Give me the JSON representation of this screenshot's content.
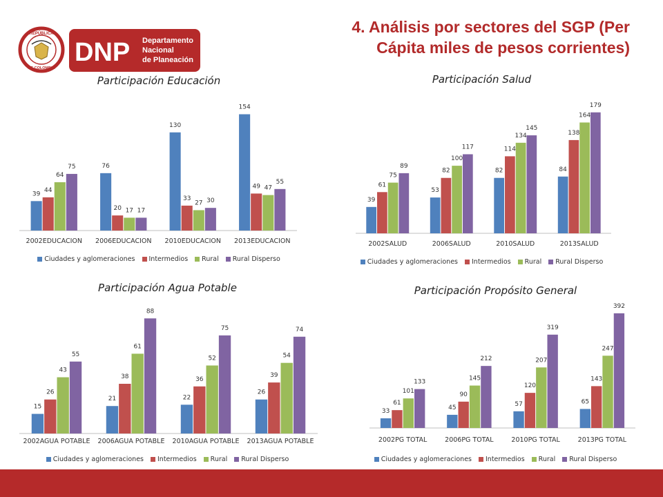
{
  "header": {
    "title_line1": "4. Análisis por sectores del SGP (Per",
    "title_line2": "Cápita miles de pesos corrientes)",
    "logo_text": "DNP",
    "logo_sub1": "Departamento",
    "logo_sub2": "Nacional",
    "logo_sub3": "de Planeación",
    "seal_top": "REPÚBLICA",
    "seal_bottom": "DE COLOMBIA"
  },
  "legend_labels": [
    "Ciudades y aglomeraciones",
    "Intermedios",
    "Rural",
    "Rural Disperso"
  ],
  "colors": [
    "#4f81bd",
    "#c0504d",
    "#9bbb59",
    "#8064a2"
  ],
  "brand_color": "#b52a2a",
  "chart_data": [
    {
      "type": "bar",
      "title": "Participación Educación",
      "categories": [
        "2002EDUCACION",
        "2006EDUCACION",
        "2010EDUCACION",
        "2013EDUCACION"
      ],
      "series": [
        {
          "name": "Ciudades y aglomeraciones",
          "values": [
            39,
            76,
            130,
            154
          ]
        },
        {
          "name": "Intermedios",
          "values": [
            44,
            20,
            33,
            49
          ]
        },
        {
          "name": "Rural",
          "values": [
            64,
            17,
            27,
            47
          ]
        },
        {
          "name": "Rural Disperso",
          "values": [
            75,
            17,
            30,
            55
          ]
        }
      ],
      "ylim": [
        0,
        170
      ]
    },
    {
      "type": "bar",
      "title": "Participación Salud",
      "categories": [
        "2002SALUD",
        "2006SALUD",
        "2010SALUD",
        "2013SALUD"
      ],
      "series": [
        {
          "name": "Ciudades y aglomeraciones",
          "values": [
            39,
            53,
            82,
            84
          ]
        },
        {
          "name": "Intermedios",
          "values": [
            61,
            82,
            114,
            138
          ]
        },
        {
          "name": "Rural",
          "values": [
            75,
            100,
            134,
            164
          ]
        },
        {
          "name": "Rural Disperso",
          "values": [
            89,
            117,
            145,
            179
          ]
        }
      ],
      "ylim": [
        0,
        190
      ]
    },
    {
      "type": "bar",
      "title": "Participación Agua Potable",
      "categories": [
        "2002AGUA POTABLE",
        "2006AGUA POTABLE",
        "2010AGUA POTABLE",
        "2013AGUA POTABLE"
      ],
      "series": [
        {
          "name": "Ciudades y aglomeraciones",
          "values": [
            15,
            21,
            22,
            26
          ]
        },
        {
          "name": "Intermedios",
          "values": [
            26,
            38,
            36,
            39
          ]
        },
        {
          "name": "Rural",
          "values": [
            43,
            61,
            52,
            54
          ]
        },
        {
          "name": "Rural Disperso",
          "values": [
            55,
            88,
            75,
            74
          ]
        }
      ],
      "ylim": [
        0,
        95
      ]
    },
    {
      "type": "bar",
      "title": "Participación Propósito General",
      "categories": [
        "2002PG TOTAL",
        "2006PG TOTAL",
        "2010PG TOTAL",
        "2013PG TOTAL"
      ],
      "series": [
        {
          "name": "Ciudades y aglomeraciones",
          "values": [
            33,
            45,
            57,
            65
          ]
        },
        {
          "name": "Intermedios",
          "values": [
            61,
            90,
            120,
            143
          ]
        },
        {
          "name": "Rural",
          "values": [
            101,
            145,
            207,
            247
          ]
        },
        {
          "name": "Rural Disperso",
          "values": [
            133,
            212,
            319,
            392
          ]
        }
      ],
      "ylim": [
        0,
        420
      ]
    }
  ]
}
